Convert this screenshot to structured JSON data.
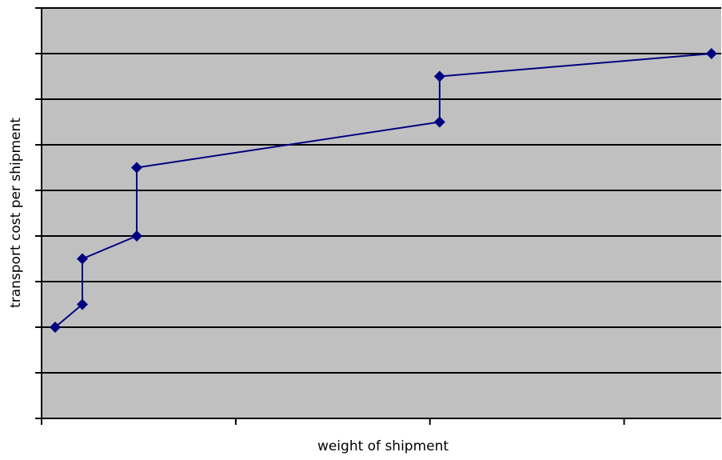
{
  "chart_data": {
    "type": "line",
    "title": "",
    "xlabel": "weight of shipment",
    "ylabel": "transport cost per shipment",
    "x_tick_labels": false,
    "y_tick_labels": false,
    "xlim": [
      0,
      3.5
    ],
    "ylim": [
      0,
      9
    ],
    "grid": true,
    "legend": "none",
    "series": [
      {
        "x": [
          0.07,
          0.21,
          0.21,
          0.49,
          0.49,
          2.05,
          2.05,
          3.45
        ],
        "y": [
          2.0,
          2.5,
          3.5,
          4.0,
          5.5,
          6.5,
          7.5,
          8.0
        ]
      }
    ],
    "colors": {
      "plot_background": "#c0c0c0",
      "gridline": "#000000",
      "series_line": "#000080",
      "marker": "#000080"
    }
  }
}
